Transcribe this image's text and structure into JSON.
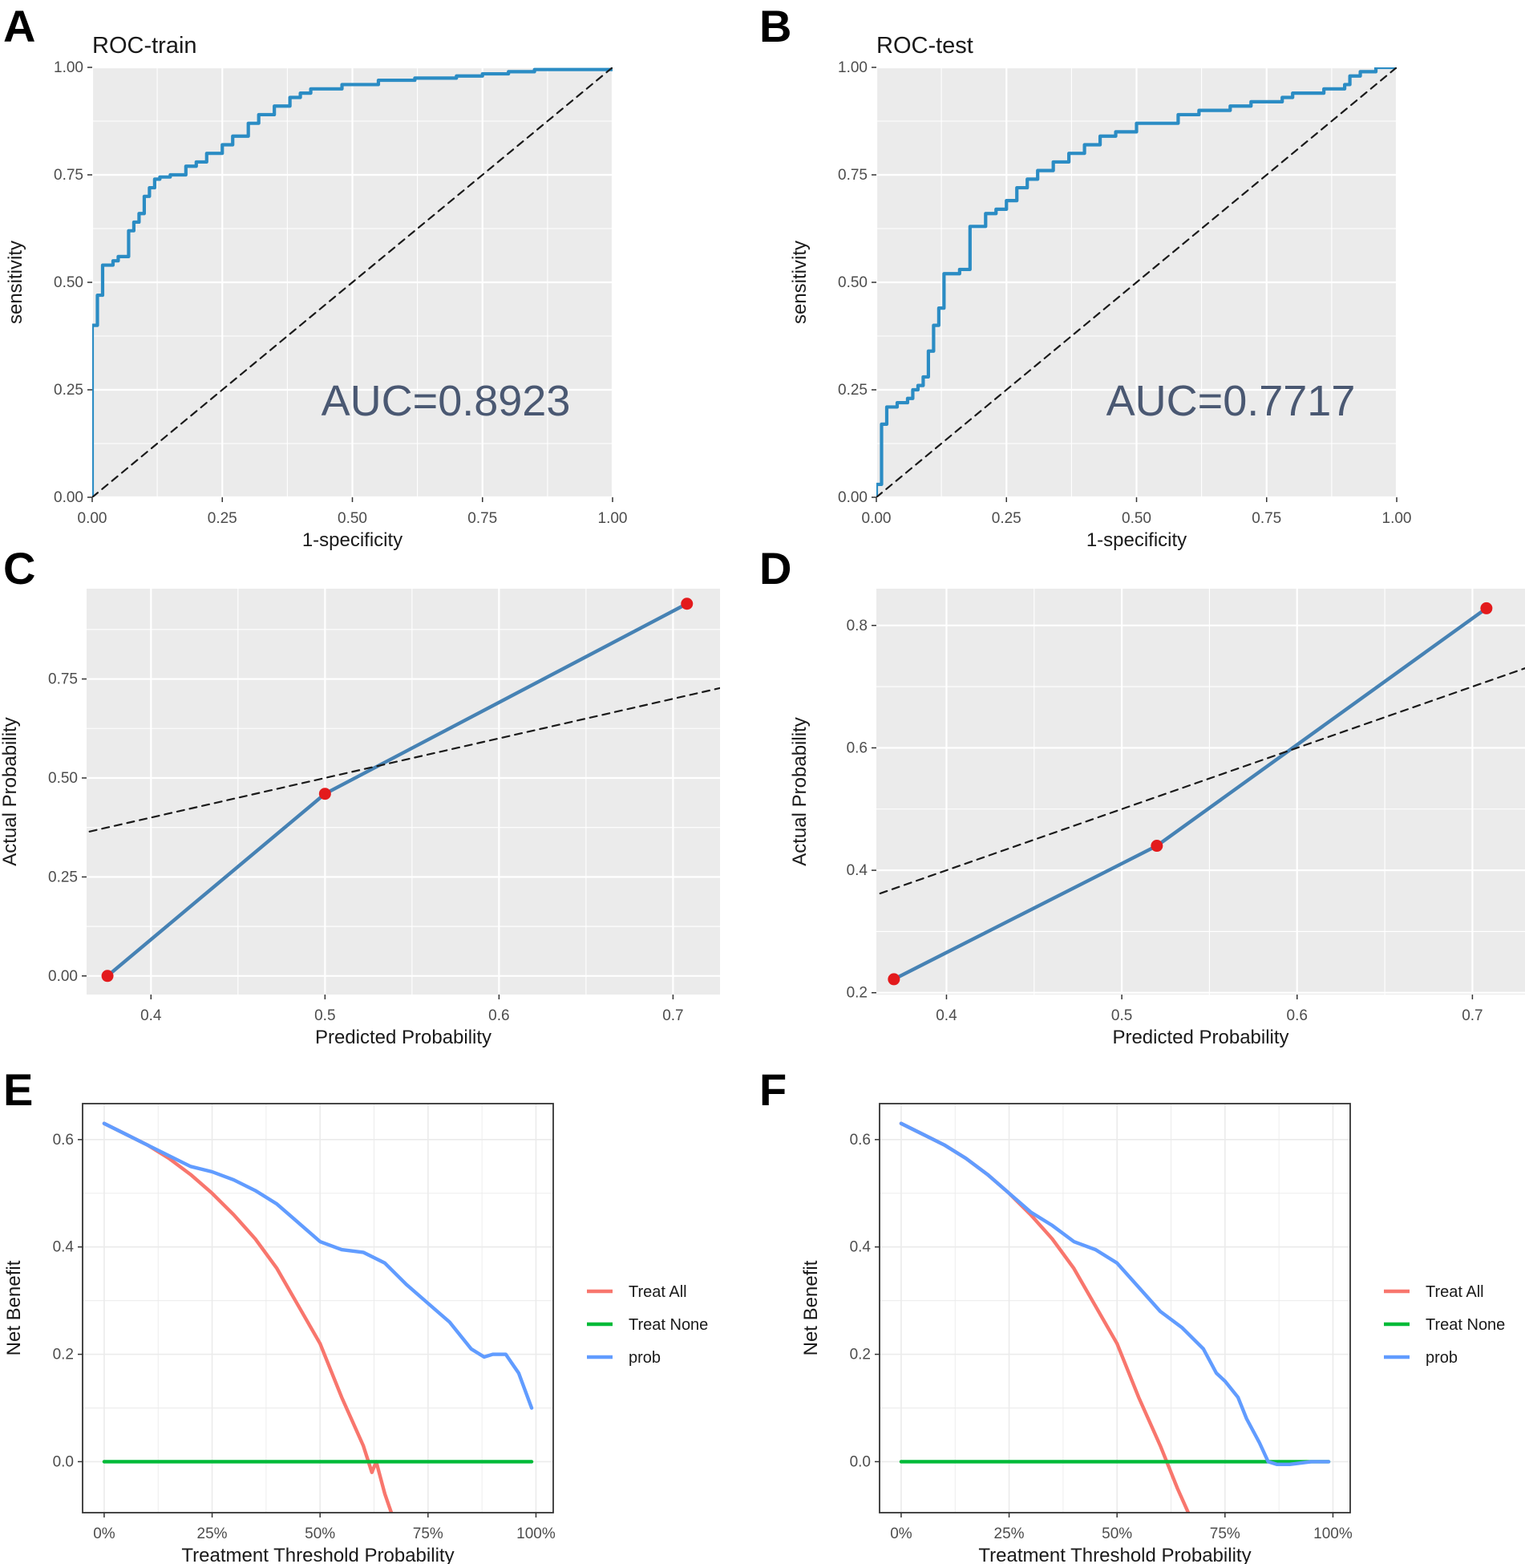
{
  "colors": {
    "roc_line": "#2b8cc4",
    "cal_line": "#4682b4",
    "cal_point": "#e31a1c",
    "panel_bg": "#ebebeb",
    "treat_all": "#f8766d",
    "treat_none": "#00ba38",
    "prob": "#619cff"
  },
  "chart_data": [
    {
      "panel": "A",
      "type": "line",
      "title": "ROC-train",
      "xlabel": "1-specificity",
      "ylabel": "sensitivity",
      "xlim": [
        0,
        1
      ],
      "ylim": [
        0,
        1
      ],
      "xticks": [
        "0.00",
        "0.25",
        "0.50",
        "0.75",
        "1.00"
      ],
      "yticks": [
        "0.00",
        "0.25",
        "0.50",
        "0.75",
        "1.00"
      ],
      "annotation": "AUC=0.8923",
      "series": [
        {
          "name": "ROC",
          "style": "step",
          "x": [
            0,
            0,
            0.01,
            0.01,
            0.02,
            0.02,
            0.04,
            0.05,
            0.07,
            0.07,
            0.08,
            0.09,
            0.1,
            0.11,
            0.12,
            0.13,
            0.15,
            0.18,
            0.2,
            0.22,
            0.25,
            0.27,
            0.3,
            0.32,
            0.35,
            0.38,
            0.4,
            0.42,
            0.48,
            0.55,
            0.62,
            0.7,
            0.75,
            0.8,
            0.85,
            1.0
          ],
          "y": [
            0,
            0.4,
            0.41,
            0.47,
            0.49,
            0.54,
            0.55,
            0.56,
            0.56,
            0.62,
            0.64,
            0.66,
            0.7,
            0.72,
            0.74,
            0.745,
            0.75,
            0.77,
            0.78,
            0.8,
            0.82,
            0.84,
            0.87,
            0.89,
            0.91,
            0.93,
            0.94,
            0.95,
            0.96,
            0.97,
            0.975,
            0.98,
            0.985,
            0.99,
            0.995,
            1.0
          ]
        },
        {
          "name": "Reference",
          "style": "dashed",
          "x": [
            0,
            1
          ],
          "y": [
            0,
            1
          ]
        }
      ]
    },
    {
      "panel": "B",
      "type": "line",
      "title": "ROC-test",
      "xlabel": "1-specificity",
      "ylabel": "sensitivity",
      "xlim": [
        0,
        1
      ],
      "ylim": [
        0,
        1
      ],
      "xticks": [
        "0.00",
        "0.25",
        "0.50",
        "0.75",
        "1.00"
      ],
      "yticks": [
        "0.00",
        "0.25",
        "0.50",
        "0.75",
        "1.00"
      ],
      "annotation": "AUC=0.7717",
      "series": [
        {
          "name": "ROC",
          "style": "step",
          "x": [
            0,
            0,
            0.01,
            0.01,
            0.02,
            0.04,
            0.06,
            0.07,
            0.08,
            0.09,
            0.1,
            0.1,
            0.11,
            0.12,
            0.13,
            0.13,
            0.16,
            0.18,
            0.18,
            0.21,
            0.23,
            0.25,
            0.27,
            0.29,
            0.31,
            0.34,
            0.37,
            0.4,
            0.43,
            0.46,
            0.5,
            0.56,
            0.58,
            0.62,
            0.68,
            0.72,
            0.78,
            0.8,
            0.86,
            0.9,
            0.91,
            0.93,
            0.96,
            1.0
          ],
          "y": [
            0,
            0.03,
            0.04,
            0.17,
            0.21,
            0.22,
            0.23,
            0.25,
            0.26,
            0.28,
            0.3,
            0.34,
            0.4,
            0.44,
            0.46,
            0.52,
            0.53,
            0.57,
            0.63,
            0.66,
            0.67,
            0.69,
            0.72,
            0.74,
            0.76,
            0.78,
            0.8,
            0.82,
            0.84,
            0.85,
            0.87,
            0.87,
            0.89,
            0.9,
            0.91,
            0.92,
            0.93,
            0.94,
            0.95,
            0.96,
            0.98,
            0.99,
            1.0,
            1.0
          ]
        },
        {
          "name": "Reference",
          "style": "dashed",
          "x": [
            0,
            1
          ],
          "y": [
            0,
            1
          ]
        }
      ]
    },
    {
      "panel": "C",
      "type": "line",
      "title": "",
      "xlabel": "Predicted Probability",
      "ylabel": "Actual Probability",
      "xlim": [
        0.363,
        0.727
      ],
      "ylim": [
        -0.047,
        0.978
      ],
      "xticks": [
        "0.4",
        "0.5",
        "0.6",
        "0.7"
      ],
      "yticks": [
        "0.00",
        "0.25",
        "0.50",
        "0.75"
      ],
      "series": [
        {
          "name": "Calibration",
          "style": "line-points",
          "x": [
            0.375,
            0.5,
            0.708
          ],
          "y": [
            0.0,
            0.46,
            0.94
          ]
        },
        {
          "name": "Reference",
          "style": "dashed",
          "x": [
            0.3,
            0.8
          ],
          "y": [
            0.3,
            0.8
          ]
        }
      ]
    },
    {
      "panel": "D",
      "type": "line",
      "title": "",
      "xlabel": "Predicted Probability",
      "ylabel": "Actual Probability",
      "xlim": [
        0.36,
        0.73
      ],
      "ylim": [
        0.197,
        0.86
      ],
      "xticks": [
        "0.4",
        "0.5",
        "0.6",
        "0.7"
      ],
      "yticks": [
        "0.2",
        "0.4",
        "0.6",
        "0.8"
      ],
      "series": [
        {
          "name": "Calibration",
          "style": "line-points",
          "x": [
            0.37,
            0.52,
            0.708
          ],
          "y": [
            0.222,
            0.44,
            0.828
          ]
        },
        {
          "name": "Reference",
          "style": "dashed",
          "x": [
            0.3,
            0.8
          ],
          "y": [
            0.3,
            0.8
          ]
        }
      ]
    },
    {
      "panel": "E",
      "type": "line",
      "title": "",
      "xlabel": "Treatment Threshold Probability",
      "ylabel": "Net Benefit",
      "xlim": [
        -0.05,
        1.04
      ],
      "ylim": [
        -0.095,
        0.667
      ],
      "xticks": [
        "0%",
        "25%",
        "50%",
        "75%",
        "100%"
      ],
      "yticks": [
        "0.0",
        "0.2",
        "0.4",
        "0.6"
      ],
      "legend": [
        "Treat All",
        "Treat None",
        "prob"
      ],
      "legend_position": "right",
      "series": [
        {
          "name": "Treat All",
          "color_key": "treat_all",
          "x": [
            0,
            0.05,
            0.1,
            0.15,
            0.2,
            0.25,
            0.3,
            0.35,
            0.4,
            0.45,
            0.5,
            0.55,
            0.6,
            0.62,
            0.63,
            0.65,
            0.665
          ],
          "y": [
            0.63,
            0.61,
            0.59,
            0.565,
            0.535,
            0.5,
            0.46,
            0.415,
            0.36,
            0.29,
            0.22,
            0.12,
            0.03,
            -0.02,
            0.0,
            -0.06,
            -0.095
          ]
        },
        {
          "name": "Treat None",
          "color_key": "treat_none",
          "x": [
            0,
            0.99
          ],
          "y": [
            0,
            0
          ]
        },
        {
          "name": "prob",
          "color_key": "prob",
          "x": [
            0,
            0.05,
            0.1,
            0.15,
            0.2,
            0.25,
            0.3,
            0.35,
            0.4,
            0.45,
            0.5,
            0.55,
            0.6,
            0.65,
            0.7,
            0.75,
            0.8,
            0.85,
            0.88,
            0.9,
            0.93,
            0.96,
            0.99
          ],
          "y": [
            0.63,
            0.61,
            0.59,
            0.57,
            0.55,
            0.54,
            0.525,
            0.505,
            0.48,
            0.445,
            0.41,
            0.395,
            0.39,
            0.37,
            0.33,
            0.295,
            0.26,
            0.21,
            0.195,
            0.2,
            0.2,
            0.165,
            0.1
          ]
        }
      ]
    },
    {
      "panel": "F",
      "type": "line",
      "title": "",
      "xlabel": "Treatment Threshold Probability",
      "ylabel": "Net Benefit",
      "xlim": [
        -0.05,
        1.04
      ],
      "ylim": [
        -0.095,
        0.667
      ],
      "xticks": [
        "0%",
        "25%",
        "50%",
        "75%",
        "100%"
      ],
      "yticks": [
        "0.0",
        "0.2",
        "0.4",
        "0.6"
      ],
      "legend": [
        "Treat All",
        "Treat None",
        "prob"
      ],
      "legend_position": "right",
      "series": [
        {
          "name": "Treat All",
          "color_key": "treat_all",
          "x": [
            0,
            0.05,
            0.1,
            0.15,
            0.2,
            0.25,
            0.3,
            0.35,
            0.4,
            0.45,
            0.5,
            0.55,
            0.6,
            0.62,
            0.64,
            0.665
          ],
          "y": [
            0.63,
            0.61,
            0.59,
            0.565,
            0.535,
            0.5,
            0.46,
            0.415,
            0.36,
            0.29,
            0.22,
            0.12,
            0.03,
            -0.01,
            -0.05,
            -0.095
          ]
        },
        {
          "name": "Treat None",
          "color_key": "treat_none",
          "x": [
            0,
            0.99
          ],
          "y": [
            0,
            0
          ]
        },
        {
          "name": "prob",
          "color_key": "prob",
          "x": [
            0,
            0.05,
            0.1,
            0.15,
            0.2,
            0.25,
            0.3,
            0.35,
            0.4,
            0.45,
            0.5,
            0.55,
            0.6,
            0.65,
            0.7,
            0.73,
            0.75,
            0.78,
            0.8,
            0.83,
            0.85,
            0.87,
            0.9,
            0.95,
            0.99
          ],
          "y": [
            0.63,
            0.61,
            0.59,
            0.565,
            0.535,
            0.5,
            0.465,
            0.44,
            0.41,
            0.395,
            0.37,
            0.325,
            0.28,
            0.25,
            0.21,
            0.165,
            0.15,
            0.12,
            0.08,
            0.035,
            0.0,
            -0.005,
            -0.005,
            0.0,
            0.0
          ]
        }
      ]
    }
  ]
}
